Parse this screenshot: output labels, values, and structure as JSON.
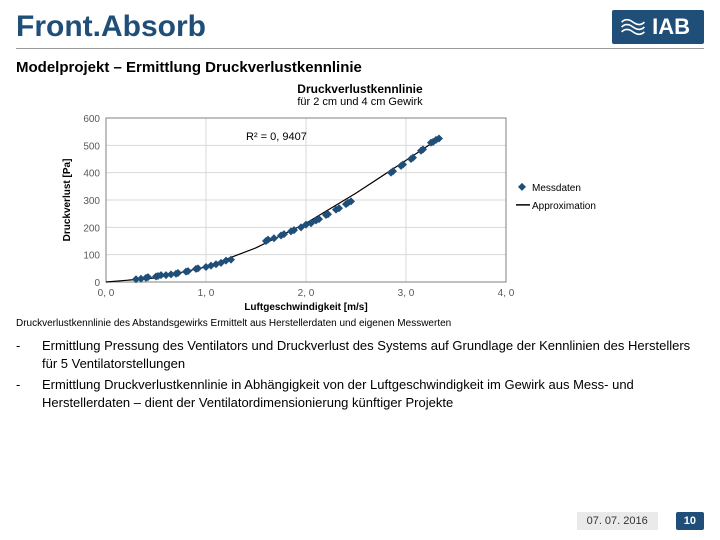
{
  "header": {
    "title": "Front.Absorb",
    "logo_text": "IAB"
  },
  "subtitle": "Modelprojekt – Ermittlung Druckverlustkennlinie",
  "chart": {
    "type": "scatter",
    "title": "Druckverlustkennlinie",
    "subtitle": "für 2 cm und 4 cm Gewirk",
    "r2_label": "R² = 0, 9407",
    "xlabel": "Luftgeschwindigkeit [m/s]",
    "ylabel": "Druckverlust [Pa]",
    "xlim": [
      0,
      4.0
    ],
    "ylim": [
      0,
      600
    ],
    "xticks": [
      0,
      1.0,
      2.0,
      3.0,
      4.0
    ],
    "xtick_labels": [
      "0, 0",
      "1, 0",
      "2, 0",
      "3, 0",
      "4, 0"
    ],
    "yticks": [
      0,
      100,
      200,
      300,
      400,
      500,
      600
    ],
    "grid_color": "#d9d9d9",
    "axis_color": "#808080",
    "background_color": "#ffffff",
    "marker_color": "#1f4e79",
    "marker_size": 4,
    "line_color": "#000000",
    "legend": {
      "series1": "Messdaten",
      "series2": "Approximation"
    },
    "points": [
      [
        0.3,
        10
      ],
      [
        0.35,
        12
      ],
      [
        0.4,
        15
      ],
      [
        0.42,
        18
      ],
      [
        0.5,
        20
      ],
      [
        0.52,
        22
      ],
      [
        0.55,
        25
      ],
      [
        0.6,
        25
      ],
      [
        0.65,
        28
      ],
      [
        0.7,
        30
      ],
      [
        0.72,
        33
      ],
      [
        0.8,
        38
      ],
      [
        0.82,
        40
      ],
      [
        0.9,
        48
      ],
      [
        0.92,
        50
      ],
      [
        1.0,
        55
      ],
      [
        1.05,
        60
      ],
      [
        1.1,
        65
      ],
      [
        1.15,
        70
      ],
      [
        1.2,
        78
      ],
      [
        1.25,
        82
      ],
      [
        1.6,
        150
      ],
      [
        1.62,
        155
      ],
      [
        1.68,
        160
      ],
      [
        1.75,
        170
      ],
      [
        1.78,
        175
      ],
      [
        1.85,
        185
      ],
      [
        1.88,
        190
      ],
      [
        1.95,
        200
      ],
      [
        2.0,
        210
      ],
      [
        2.05,
        215
      ],
      [
        2.1,
        225
      ],
      [
        2.13,
        230
      ],
      [
        2.2,
        245
      ],
      [
        2.22,
        248
      ],
      [
        2.3,
        265
      ],
      [
        2.33,
        270
      ],
      [
        2.4,
        285
      ],
      [
        2.42,
        290
      ],
      [
        2.45,
        295
      ],
      [
        2.85,
        400
      ],
      [
        2.87,
        405
      ],
      [
        2.95,
        425
      ],
      [
        2.97,
        430
      ],
      [
        3.05,
        450
      ],
      [
        3.07,
        455
      ],
      [
        3.15,
        480
      ],
      [
        3.17,
        485
      ],
      [
        3.25,
        510
      ],
      [
        3.27,
        512
      ],
      [
        3.3,
        520
      ],
      [
        3.33,
        525
      ]
    ],
    "approx": [
      [
        0.0,
        0
      ],
      [
        0.5,
        15
      ],
      [
        1.0,
        55
      ],
      [
        1.5,
        125
      ],
      [
        2.0,
        215
      ],
      [
        2.5,
        325
      ],
      [
        3.0,
        445
      ],
      [
        3.35,
        530
      ]
    ]
  },
  "caption": "Druckverlustkennlinie des Abstandsgewirks Ermittelt aus Herstellerdaten und eigenen Messwerten",
  "bullets": [
    "Ermittlung Pressung des Ventilators und Druckverlust des Systems auf Grundlage der Kennlinien des Herstellers für 5 Ventilatorstellungen",
    "Ermittlung Druckverlustkennlinie in Abhängigkeit von der Luftgeschwindigkeit im Gewirk aus Mess- und Herstellerdaten – dient der Ventilatordimensionierung künftiger Projekte"
  ],
  "footer": {
    "date": "07. 07. 2016",
    "page": "10"
  }
}
